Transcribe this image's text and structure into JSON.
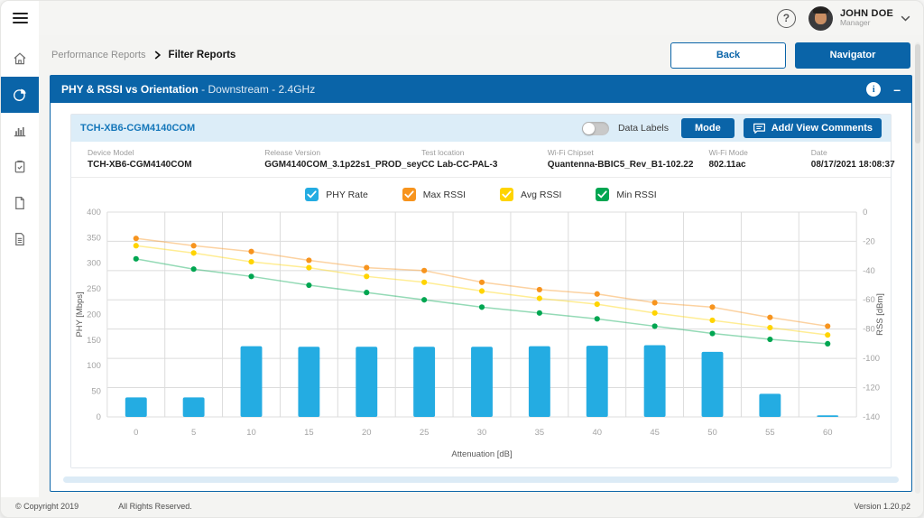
{
  "topbar": {
    "user_name": "JOHN DOE",
    "user_role": "Manager",
    "help_label": "?"
  },
  "sidebar": {
    "items": [
      {
        "icon": "home-icon",
        "active": false
      },
      {
        "icon": "pie-chart-icon",
        "active": true
      },
      {
        "icon": "bar-chart-icon",
        "active": false
      },
      {
        "icon": "clipboard-check-icon",
        "active": false
      },
      {
        "icon": "document-icon",
        "active": false
      },
      {
        "icon": "document-lines-icon",
        "active": false
      }
    ]
  },
  "breadcrumb": {
    "parent": "Performance Reports",
    "current": "Filter Reports"
  },
  "buttons": {
    "back": "Back",
    "navigator": "Navigator",
    "mode": "Mode",
    "add_view_comments": "Add/ View Comments"
  },
  "panel": {
    "title_bold": "PHY & RSSI vs Orientation",
    "title_rest": " - Downstream - 2.4GHz",
    "collapse_glyph": "–",
    "info_glyph": "i"
  },
  "card": {
    "title": "TCH-XB6-CGM4140COM",
    "data_labels_label": "Data Labels",
    "data_labels_on": false,
    "meta": [
      {
        "label": "Device Model",
        "value": "TCH-XB6-CGM4140COM",
        "width": "22.5%"
      },
      {
        "label": "Release Version",
        "value": "GGM4140COM_3.1p22s1_PROD_sey",
        "width": "17%"
      },
      {
        "label": "Test location",
        "value": "CC Lab-CC-PAL-3",
        "width": "16%"
      },
      {
        "label": "Wi-Fi Chipset",
        "value": "Quantenna-BBIC5_Rev_B1-102.22",
        "width": "20.5%"
      },
      {
        "label": "Wi-Fi Mode",
        "value": "802.11ac",
        "width": "13%"
      },
      {
        "label": "Date",
        "value": "08/17/2021 18:08:37",
        "width": "11%"
      }
    ]
  },
  "colors": {
    "primary": "#0a64a8",
    "phy": "#24ace2",
    "max": "#f7941e",
    "avg": "#ffd400",
    "min": "#00a651"
  },
  "chart_data": {
    "type": "bar+line",
    "categories": [
      0,
      5,
      10,
      15,
      20,
      25,
      30,
      35,
      40,
      45,
      50,
      55,
      60
    ],
    "series": [
      {
        "name": "PHY Rate",
        "type": "bar",
        "axis": "left",
        "color": "#24ace2",
        "values": [
          38,
          38,
          138,
          137,
          137,
          137,
          137,
          138,
          139,
          140,
          127,
          45,
          3
        ]
      },
      {
        "name": "Max RSSI",
        "type": "line",
        "axis": "right",
        "color": "#f7941e",
        "values": [
          -18,
          -23,
          -27,
          -33,
          -38,
          -40,
          -48,
          -53,
          -56,
          -62,
          -65,
          -72,
          -78
        ]
      },
      {
        "name": "Avg RSSI",
        "type": "line",
        "axis": "right",
        "color": "#ffd400",
        "values": [
          -23,
          -28,
          -34,
          -38,
          -44,
          -48,
          -54,
          -59,
          -63,
          -69,
          -74,
          -79,
          -84
        ]
      },
      {
        "name": "Min RSSI",
        "type": "line",
        "axis": "right",
        "color": "#00a651",
        "values": [
          -32,
          -39,
          -44,
          -50,
          -55,
          -60,
          -65,
          -69,
          -73,
          -78,
          -83,
          -87,
          -90
        ]
      }
    ],
    "xlabel": "Attenuation [dB]",
    "ylabel_left": "PHY [Mbps]",
    "ylabel_right": "RSS [dBm]",
    "ylim_left": [
      0,
      400
    ],
    "ylim_right": [
      -140,
      0
    ],
    "left_ticks": [
      0,
      50,
      100,
      150,
      200,
      250,
      300,
      350,
      400
    ],
    "right_ticks": [
      0,
      -20,
      -40,
      -60,
      -80,
      -100,
      -120,
      -140
    ],
    "grid": true,
    "legend_position": "top"
  },
  "legend": [
    {
      "label": "PHY Rate",
      "color": "#24ace2"
    },
    {
      "label": "Max RSSI",
      "color": "#f7941e"
    },
    {
      "label": "Avg RSSI",
      "color": "#ffd400"
    },
    {
      "label": "Min RSSI",
      "color": "#00a651"
    }
  ],
  "footer": {
    "copyright": "© Copyright 2019",
    "rights": "All Rights Reserved.",
    "version": "Version 1.20.p2"
  }
}
